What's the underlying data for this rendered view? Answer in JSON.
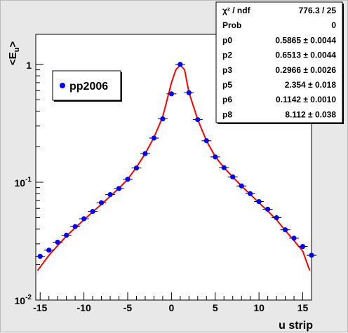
{
  "chart_data": {
    "type": "scatter",
    "xlabel": "u strip",
    "ylabel": "<E_u>",
    "ylabel_main": "<E",
    "ylabel_sub": "u",
    "ylabel_tail": ">",
    "xlim": [
      -15.5,
      16.0
    ],
    "ylim": [
      0.01,
      1.8
    ],
    "yscale": "log",
    "x_ticks": [
      "-15",
      "-10",
      "-5",
      "0",
      "5",
      "10",
      "15"
    ],
    "x_tick_values": [
      -15,
      -10,
      -5,
      0,
      5,
      10,
      15
    ],
    "y_ticks": [
      {
        "value": 0.01,
        "base": "10",
        "exp": "-2"
      },
      {
        "value": 0.1,
        "base": "10",
        "exp": "-1"
      },
      {
        "value": 1,
        "base": "1",
        "exp": ""
      }
    ],
    "grid": false,
    "legend": {
      "position": "top-left",
      "entries": [
        "pp2006"
      ]
    },
    "marker_color": "#0000ff",
    "fit_color": "#ff0000",
    "series": [
      {
        "name": "pp2006",
        "x": [
          -15,
          -14,
          -13,
          -12,
          -11,
          -10,
          -9,
          -8,
          -7,
          -6,
          -5,
          -4,
          -3,
          -2,
          -1,
          0,
          1,
          2,
          3,
          4,
          5,
          6,
          7,
          8,
          9,
          10,
          11,
          12,
          13,
          14,
          15,
          16
        ],
        "y": [
          0.0235,
          0.0265,
          0.031,
          0.0355,
          0.042,
          0.049,
          0.0565,
          0.067,
          0.0785,
          0.0885,
          0.106,
          0.132,
          0.175,
          0.237,
          0.345,
          0.563,
          1.0,
          0.575,
          0.34,
          0.225,
          0.164,
          0.133,
          0.111,
          0.093,
          0.08,
          0.0685,
          0.059,
          0.05,
          0.0395,
          0.0335,
          0.0285,
          0.024
        ]
      }
    ],
    "fit": {
      "name": "fit",
      "x": [
        -15.3,
        -14,
        -13,
        -12,
        -11,
        -10,
        -9,
        -8,
        -7,
        -6,
        -5,
        -4,
        -3,
        -2,
        -1,
        -0.5,
        0,
        0.5,
        1,
        1.5,
        2,
        3,
        4,
        5,
        6,
        7,
        8,
        9,
        10,
        11,
        12,
        13,
        14,
        15,
        15.8
      ],
      "y": [
        0.0178,
        0.024,
        0.029,
        0.035,
        0.041,
        0.048,
        0.056,
        0.065,
        0.076,
        0.089,
        0.106,
        0.134,
        0.175,
        0.24,
        0.36,
        0.5,
        0.7,
        0.9,
        0.99,
        0.9,
        0.58,
        0.34,
        0.225,
        0.165,
        0.133,
        0.111,
        0.093,
        0.079,
        0.067,
        0.057,
        0.048,
        0.039,
        0.032,
        0.026,
        0.0178
      ]
    },
    "stats": [
      {
        "key": "χ² / ndf",
        "val": "776.3 / 25"
      },
      {
        "key": "Prob",
        "val": "0"
      },
      {
        "key": "p0",
        "val": "0.5865 ± 0.0044"
      },
      {
        "key": "p2",
        "val": "0.6513 ± 0.0044"
      },
      {
        "key": "p3",
        "val": "0.2966 ± 0.0026"
      },
      {
        "key": "p5",
        "val": "2.354 ± 0.018"
      },
      {
        "key": "p6",
        "val": "0.1142 ± 0.0010"
      },
      {
        "key": "p8",
        "val": "8.112 ± 0.038"
      }
    ]
  }
}
